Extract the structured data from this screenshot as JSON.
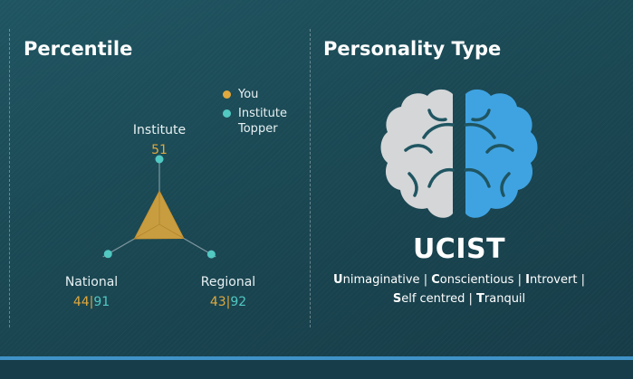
{
  "percentile": {
    "title": "Percentile",
    "legend": [
      {
        "label": "You",
        "color": "#e0a83e"
      },
      {
        "label": "Institute Topper",
        "color": "#52c8c2"
      }
    ],
    "axes": {
      "institute": {
        "label": "Institute",
        "you": "51",
        "topper": ""
      },
      "national": {
        "label": "National",
        "you": "44",
        "topper": "91"
      },
      "regional": {
        "label": "Regional",
        "you": "43",
        "topper": "92"
      }
    },
    "separator": "|"
  },
  "chart_data": {
    "type": "radar",
    "axes": [
      "Institute",
      "Regional",
      "National"
    ],
    "range": [
      0,
      100
    ],
    "series": [
      {
        "name": "You",
        "values": [
          51,
          43,
          44
        ],
        "color": "#e0a83e"
      },
      {
        "name": "Institute Topper",
        "values": [
          100,
          92,
          91
        ],
        "color": "#52c8c2"
      }
    ]
  },
  "personality": {
    "title": "Personality Type",
    "code": "UCIST",
    "brain_left_color": "#d4d6d8",
    "brain_right_color": "#3fa3e2",
    "separator": "|",
    "traits": [
      {
        "initial": "U",
        "rest": "nimaginative"
      },
      {
        "initial": "C",
        "rest": "onscientious"
      },
      {
        "initial": "I",
        "rest": "ntrovert"
      },
      {
        "initial": "S",
        "rest": "elf centred"
      },
      {
        "initial": "T",
        "rest": "ranquil"
      }
    ]
  }
}
